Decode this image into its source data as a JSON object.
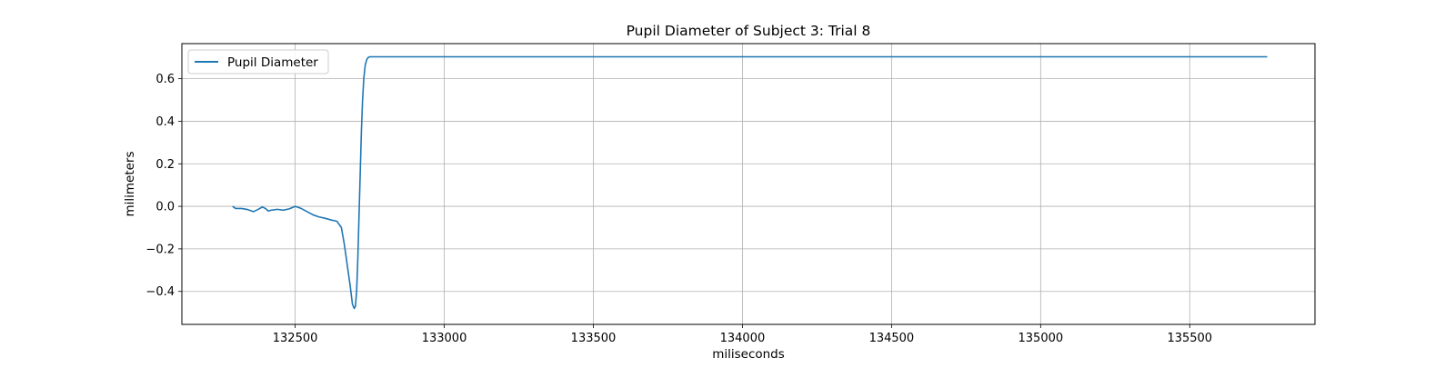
{
  "chart_data": {
    "type": "line",
    "title": "Pupil Diameter of Subject 3: Trial 8",
    "xlabel": "miliseconds",
    "ylabel": "milimeters",
    "xlim": [
      132120,
      135920
    ],
    "ylim": [
      -0.555,
      0.765
    ],
    "xticks": [
      132500,
      133000,
      133500,
      134000,
      134500,
      135000,
      135500
    ],
    "yticks": [
      -0.4,
      -0.2,
      0.0,
      0.2,
      0.4,
      0.6
    ],
    "xtick_labels": [
      "132500",
      "133000",
      "133500",
      "134000",
      "134500",
      "135000",
      "135500"
    ],
    "ytick_labels": [
      "−0.4",
      "−0.2",
      "0.0",
      "0.2",
      "0.4",
      "0.6"
    ],
    "grid": true,
    "legend_position": "top-left",
    "series": [
      {
        "name": "Pupil Diameter",
        "color": "#1f77b4",
        "x": [
          132290,
          132300,
          132320,
          132340,
          132360,
          132375,
          132390,
          132400,
          132410,
          132420,
          132440,
          132460,
          132480,
          132500,
          132520,
          132540,
          132560,
          132580,
          132600,
          132620,
          132640,
          132655,
          132665,
          132675,
          132685,
          132692,
          132698,
          132702,
          132706,
          132710,
          132714,
          132718,
          132722,
          132726,
          132730,
          132735,
          132740,
          132745,
          132750,
          132760,
          132800,
          133000,
          133500,
          134000,
          134500,
          135000,
          135500,
          135760
        ],
        "y": [
          0.0,
          -0.01,
          -0.01,
          -0.015,
          -0.025,
          -0.015,
          -0.003,
          -0.01,
          -0.022,
          -0.018,
          -0.014,
          -0.018,
          -0.012,
          0.0,
          -0.01,
          -0.025,
          -0.04,
          -0.05,
          -0.056,
          -0.064,
          -0.07,
          -0.1,
          -0.18,
          -0.28,
          -0.38,
          -0.46,
          -0.48,
          -0.47,
          -0.4,
          -0.25,
          -0.05,
          0.15,
          0.35,
          0.5,
          0.6,
          0.665,
          0.69,
          0.7,
          0.703,
          0.703,
          0.703,
          0.703,
          0.703,
          0.703,
          0.703,
          0.703,
          0.703,
          0.703
        ]
      }
    ]
  }
}
